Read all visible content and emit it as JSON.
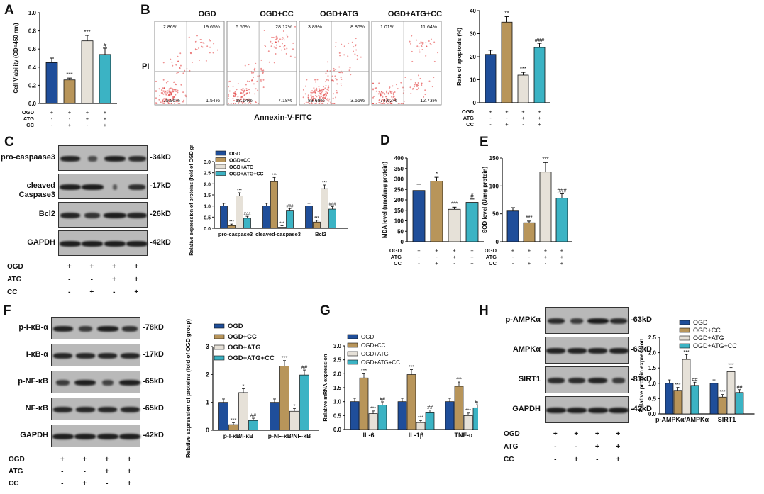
{
  "panels": [
    "A",
    "B",
    "C",
    "D",
    "E",
    "F",
    "G",
    "H"
  ],
  "colors": {
    "ogd": "#1f4e9a",
    "ogd_cc": "#b8955a",
    "ogd_atg": "#e6e1d8",
    "ogd_atg_cc": "#3bb3c4",
    "dots": "#e23b3b"
  },
  "conditions": {
    "ogd": "OGD",
    "atg": "ATG",
    "cc": "CC"
  },
  "legend": [
    "OGD",
    "OGD+CC",
    "OGD+ATG",
    "OGD+ATG+CC"
  ],
  "signs3": {
    "ogd": [
      "+",
      "+",
      "+",
      "+"
    ],
    "atg": [
      "-",
      "-",
      "+",
      "+"
    ],
    "cc": [
      "-",
      "+",
      "-",
      "+"
    ]
  },
  "flow": {
    "titles": [
      "OGD",
      "OGD+CC",
      "OGD+ATG",
      "OGD+ATG+CC"
    ],
    "quadrants": [
      [
        "2.86%",
        "19.65%",
        "75.95%",
        "1.54%"
      ],
      [
        "6.56%",
        "28.12%",
        "58.14%",
        "7.18%"
      ],
      [
        "3.89%",
        "8.86%",
        "83.69%",
        "3.56%"
      ],
      [
        "1.01%",
        "11.64%",
        "74.62%",
        "12.73%"
      ]
    ],
    "xlabel": "Annexin-V-FITC",
    "ylabel": "PI"
  },
  "blotC": {
    "rows": [
      "pro-caspaase3",
      "cleaved Caspase3",
      "Bcl2",
      "GAPDH"
    ],
    "kd": [
      "-34kD",
      "-17kD",
      "-26kD",
      "-42kD"
    ]
  },
  "blotF": {
    "rows": [
      "p-I-κB-α",
      "I-κB-α",
      "p-NF-κB",
      "NF-κB",
      "GAPDH"
    ],
    "kd": [
      "-78kD",
      "-17kD",
      "-65kD",
      "-65kD",
      "-42kD"
    ]
  },
  "blotH": {
    "rows": [
      "p-AMPKα",
      "AMPKα",
      "SIRT1",
      "GAPDH"
    ],
    "kd": [
      "-63kD",
      "-63kD",
      "-81kD",
      "-42kD"
    ]
  },
  "chart_data": [
    {
      "id": "A",
      "type": "bar",
      "categories": [
        "OGD",
        "OGD+CC",
        "OGD+ATG",
        "OGD+ATG+CC"
      ],
      "values": [
        0.45,
        0.26,
        0.69,
        0.54
      ],
      "errors": [
        0.05,
        0.02,
        0.06,
        0.07
      ],
      "sig": [
        "",
        "***",
        "***",
        "#"
      ],
      "ylabel": "Cell Viability (OD=450 nm)",
      "ylim": [
        0,
        1.0
      ],
      "yticks": [
        "0.0",
        "0.2",
        "0.4",
        "0.6",
        "0.8",
        "1.0"
      ]
    },
    {
      "id": "B",
      "type": "bar",
      "categories": [
        "OGD",
        "OGD+CC",
        "OGD+ATG",
        "OGD+ATG+CC"
      ],
      "values": [
        21,
        35,
        12,
        24
      ],
      "errors": [
        1.8,
        2.4,
        1.2,
        1.8
      ],
      "sig": [
        "",
        "**",
        "***",
        "###"
      ],
      "ylabel": "Rate of apoptosis (%)",
      "ylim": [
        0,
        40
      ],
      "yticks": [
        "0",
        "10",
        "20",
        "30",
        "40"
      ]
    },
    {
      "id": "C",
      "type": "bar",
      "groups": [
        "pro-caspase3",
        "cleaved-caspase3",
        "Bcl2"
      ],
      "series": [
        {
          "name": "OGD",
          "values": [
            1.0,
            1.0,
            1.0
          ]
        },
        {
          "name": "OGD+CC",
          "values": [
            0.12,
            2.1,
            0.28
          ]
        },
        {
          "name": "OGD+ATG",
          "values": [
            1.45,
            0.05,
            1.78
          ]
        },
        {
          "name": "OGD+ATG+CC",
          "values": [
            0.45,
            0.78,
            0.86
          ]
        }
      ],
      "sig": [
        [
          "",
          "***",
          "***",
          "###"
        ],
        [
          "",
          "***",
          "***",
          "###"
        ],
        [
          "",
          "***",
          "***",
          "###"
        ]
      ],
      "ylabel": "Relative expression of proteins (fold of OGD group)",
      "ylim": [
        0,
        3.0
      ],
      "yticks": [
        "0.0",
        "0.5",
        "1.0",
        "1.5",
        "2.0",
        "2.5",
        "3.0"
      ]
    },
    {
      "id": "D",
      "type": "bar",
      "categories": [
        "OGD",
        "OGD+CC",
        "OGD+ATG",
        "OGD+ATG+CC"
      ],
      "values": [
        245,
        290,
        155,
        188
      ],
      "errors": [
        30,
        18,
        10,
        16
      ],
      "sig": [
        "",
        "*",
        "***",
        "#"
      ],
      "ylabel": "MDA level (nmol/mg protein)",
      "ylim": [
        0,
        400
      ],
      "yticks": [
        "0",
        "50",
        "100",
        "150",
        "200",
        "250",
        "300",
        "350",
        "400"
      ]
    },
    {
      "id": "E",
      "type": "bar",
      "categories": [
        "OGD",
        "OGD+CC",
        "OGD+ATG",
        "OGD+ATG+CC"
      ],
      "values": [
        55,
        34,
        125,
        78
      ],
      "errors": [
        6,
        3,
        17,
        8
      ],
      "sig": [
        "",
        "***",
        "***",
        "###"
      ],
      "ylabel": "SOD level (U/mg protein)",
      "ylim": [
        0,
        150
      ],
      "yticks": [
        "0",
        "50",
        "100",
        "150"
      ]
    },
    {
      "id": "F",
      "type": "bar",
      "groups": [
        "p-I-κB/I-κB",
        "p-NF-κB/NF-κB"
      ],
      "series": [
        {
          "name": "OGD",
          "values": [
            1.0,
            1.0
          ]
        },
        {
          "name": "OGD+CC",
          "values": [
            0.2,
            2.3
          ]
        },
        {
          "name": "OGD+ATG",
          "values": [
            1.35,
            0.68
          ]
        },
        {
          "name": "OGD+ATG+CC",
          "values": [
            0.35,
            1.98
          ]
        }
      ],
      "sig": [
        [
          "",
          "***",
          "*",
          "##"
        ],
        [
          "",
          "***",
          "*",
          "##"
        ]
      ],
      "ylabel": "Relative expression of proteins (fold of OGD group)",
      "ylim": [
        0,
        3
      ],
      "yticks": [
        "0",
        "1",
        "2",
        "3"
      ]
    },
    {
      "id": "G",
      "type": "bar",
      "groups": [
        "IL-6",
        "IL-1β",
        "TNF-α"
      ],
      "series": [
        {
          "name": "OGD",
          "values": [
            1.0,
            1.0,
            1.0
          ]
        },
        {
          "name": "OGD+CC",
          "values": [
            1.85,
            1.97,
            1.55
          ]
        },
        {
          "name": "OGD+ATG",
          "values": [
            0.57,
            0.25,
            0.5
          ]
        },
        {
          "name": "OGD+ATG+CC",
          "values": [
            0.88,
            0.6,
            0.78
          ]
        }
      ],
      "sig": [
        [
          "",
          "***",
          "***",
          "##"
        ],
        [
          "",
          "***",
          "***",
          "##"
        ],
        [
          "",
          "***",
          "***",
          "##"
        ]
      ],
      "ylabel": "Relative mRNA expression",
      "ylim": [
        0,
        3.0
      ],
      "yticks": [
        "0.0",
        "0.5",
        "1.0",
        "1.5",
        "2.0",
        "2.5",
        "3.0"
      ]
    },
    {
      "id": "H",
      "type": "bar",
      "groups": [
        "p-AMPKα/AMPKα",
        "SIRT1"
      ],
      "series": [
        {
          "name": "OGD",
          "values": [
            1.0,
            1.0
          ]
        },
        {
          "name": "OGD+CC",
          "values": [
            0.77,
            0.55
          ]
        },
        {
          "name": "OGD+ATG",
          "values": [
            1.78,
            1.38
          ]
        },
        {
          "name": "OGD+ATG+CC",
          "values": [
            0.93,
            0.7
          ]
        }
      ],
      "sig": [
        [
          "",
          "***",
          "***",
          "##"
        ],
        [
          "",
          "***",
          "***",
          "##"
        ]
      ],
      "ylabel": "Relative protein expression",
      "ylim": [
        0,
        2.5
      ],
      "yticks": [
        "0.0",
        "0.5",
        "1.0",
        "1.5",
        "2.0",
        "2.5"
      ]
    }
  ]
}
